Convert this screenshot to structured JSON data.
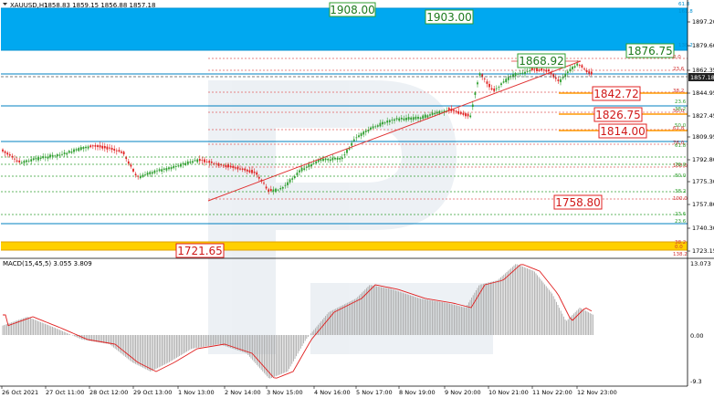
{
  "header": {
    "symbol": "XAUUSD,H1",
    "ohlc": "1858.83 1859.15 1856.88 1857.18"
  },
  "price_axis": {
    "ticks": [
      "1897.20",
      "1879.60",
      "1862.35",
      "1844.95",
      "1827.45",
      "1809.95",
      "1792.80",
      "1775.30",
      "1757.80",
      "1740.30",
      "1723.15"
    ],
    "current_price": "1857.18"
  },
  "levels": {
    "resistance_high": "1908.00",
    "resistance_mid": "1903.00",
    "target_up": "1876.75",
    "local_high": "1868.92",
    "support_1": "1842.72",
    "support_2": "1826.75",
    "support_3": "1814.00",
    "support_4": "1758.80",
    "support_low": "1721.65"
  },
  "fib_labels": {
    "upper_zone": [
      "61.8",
      "161.8",
      "138.2",
      "0.0",
      "23.6",
      "38.2",
      "50.0",
      "61.8",
      "76.0",
      "100.0"
    ],
    "lower_zone": [
      "23.6",
      "38.2",
      "50.0",
      "61.8",
      "76.0",
      "80.0",
      "38.2",
      "100.0",
      "23.6",
      "23.6",
      "38.2",
      "0.0",
      "138.2"
    ]
  },
  "macd": {
    "title": "MACD(15,45,5) 3.055 3.809",
    "ticks": [
      "13.073",
      "0.00",
      "-9.3"
    ]
  },
  "time_axis": [
    "26 Oct 2021",
    "27 Oct 11:00",
    "28 Oct 12:00",
    "29 Oct 13:00",
    "1 Nov 13:00",
    "2 Nov 14:00",
    "3 Nov 15:00",
    "4 Nov 16:00",
    "5 Nov 17:00",
    "8 Nov 19:00",
    "9 Nov 20:00",
    "10 Nov 21:00",
    "11 Nov 22:00",
    "12 Nov 23:00"
  ],
  "colors": {
    "zone_blue": "#00a8f0",
    "zone_yellow": "#ffd000",
    "bull": "#2e9e2e",
    "bear": "#e02020",
    "trendline": "#e03030",
    "level_line": "#0080c0",
    "support_orange": "#ff9900"
  }
}
